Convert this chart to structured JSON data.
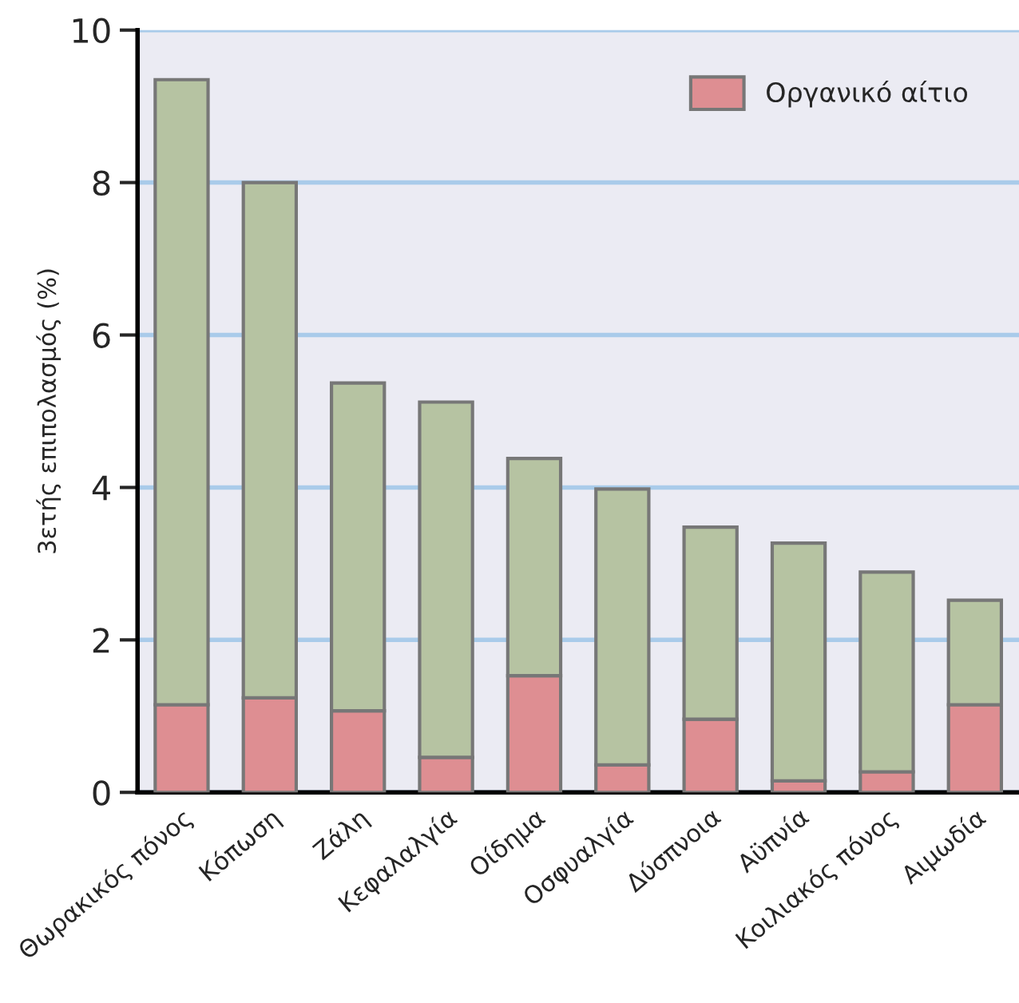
{
  "chart_data": {
    "type": "bar",
    "stacked": true,
    "ylabel": "3ετής επιπολασμός (%)",
    "categories": [
      "Θωρακικός πόνος",
      "Κόπωση",
      "Ζάλη",
      "Κεφαλαλγία",
      "Οίδημα",
      "Οσφυαλγία",
      "Δύσπνοια",
      "Αϋπνία",
      "Κοιλιακός πόνος",
      "Αιμωδία"
    ],
    "series": [
      {
        "name": "Οργανικό αίτιο",
        "color": "#de8e92",
        "values": [
          1.15,
          1.24,
          1.07,
          0.46,
          1.53,
          0.36,
          0.96,
          0.15,
          0.27,
          1.15
        ]
      },
      {
        "color": "#b6c3a2",
        "values": [
          8.2,
          6.76,
          4.3,
          4.66,
          2.85,
          3.62,
          2.52,
          3.12,
          2.62,
          1.37
        ]
      }
    ],
    "ylim": [
      0,
      10
    ],
    "yticks": [
      0,
      2,
      4,
      6,
      8,
      10
    ],
    "grid": "y",
    "legend": "top right"
  }
}
